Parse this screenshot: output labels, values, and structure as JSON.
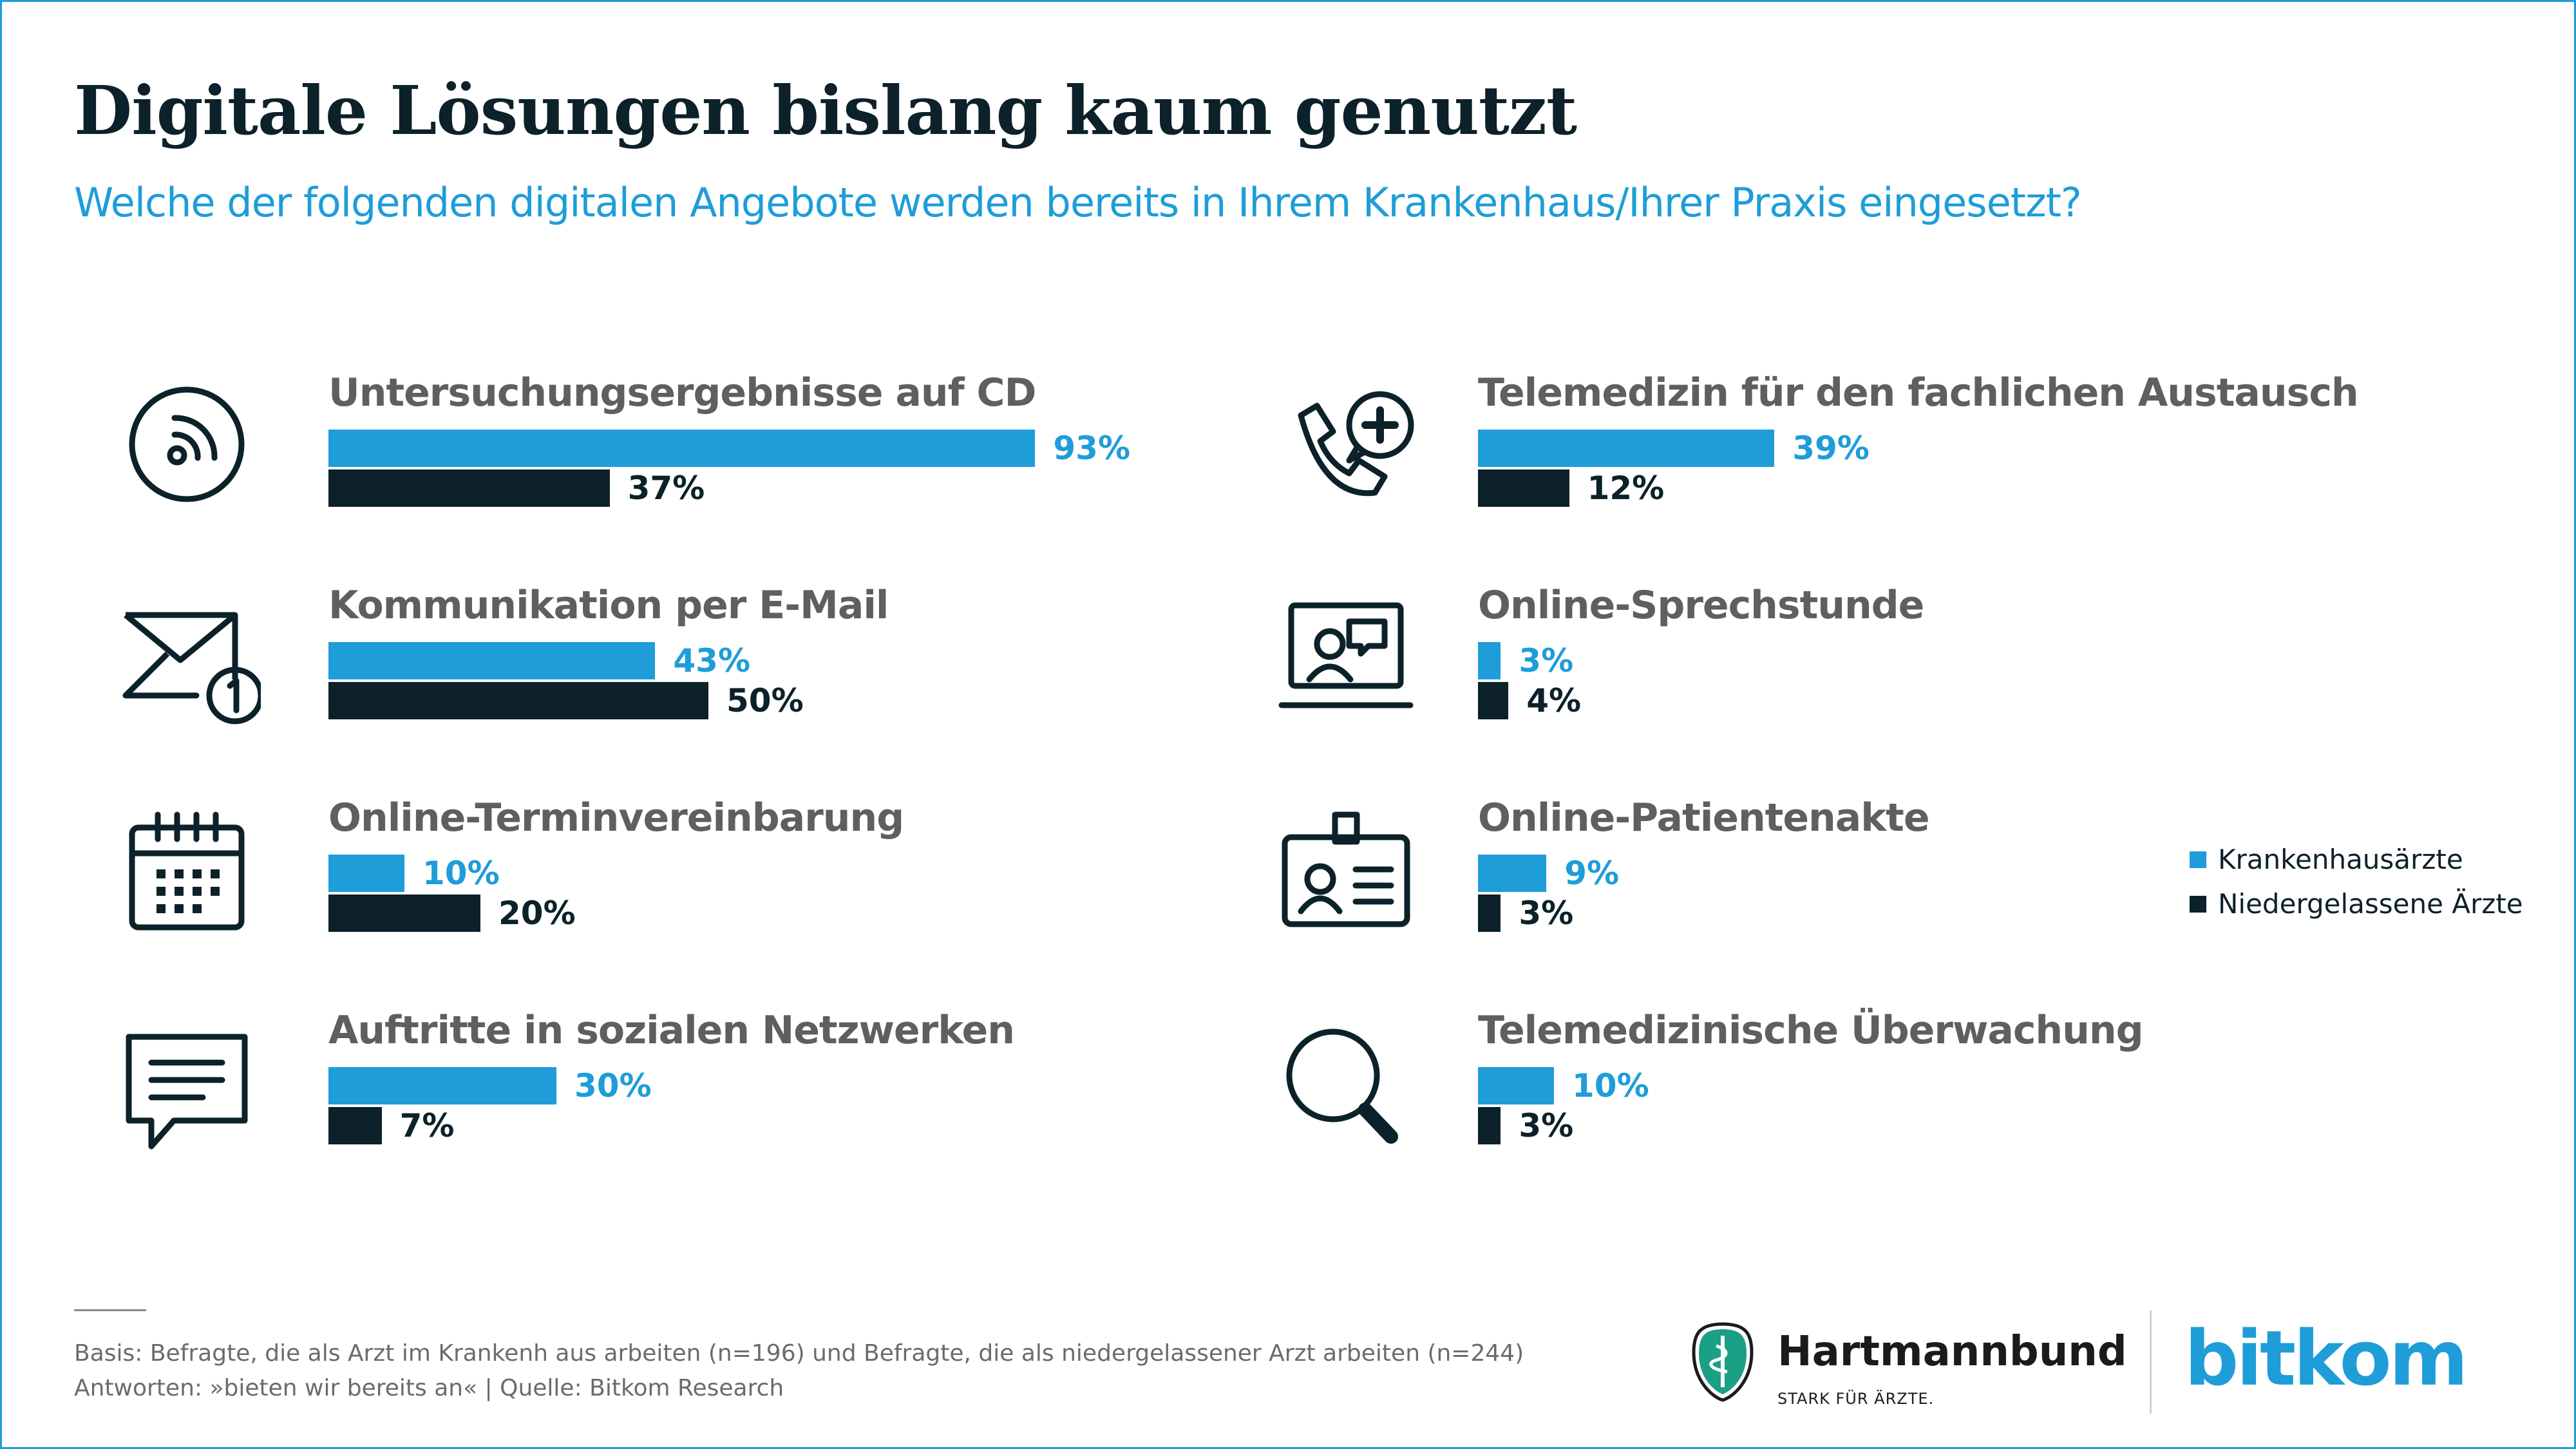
{
  "title": "Digitale Lösungen bislang kaum genutzt",
  "subtitle": "Welche der folgenden digitalen Angebote werden bereits in Ihrem Krankenhaus/Ihrer Praxis eingesetzt?",
  "colors": {
    "krankenhaus": "#1e9dd8",
    "niedergelassen": "#0c2129",
    "label": "#5f5f5f",
    "frame": "#1e9dd8"
  },
  "chart_data": {
    "type": "bar",
    "orientation": "horizontal",
    "series": [
      {
        "name": "Krankenhausärzte",
        "color": "#1e9dd8"
      },
      {
        "name": "Niedergelassene Ärzte",
        "color": "#0c2129"
      }
    ],
    "categories": [
      {
        "label": "Untersuchungsergebnisse auf CD",
        "icon": "cd-disc-icon",
        "values": [
          93,
          37
        ],
        "display": [
          "93%",
          "37%"
        ]
      },
      {
        "label": "Kommunikation per E-Mail",
        "icon": "email-envelope-icon",
        "values": [
          43,
          50
        ],
        "display": [
          "43%",
          "50%"
        ]
      },
      {
        "label": "Online-Terminvereinbarung",
        "icon": "calendar-icon",
        "values": [
          10,
          20
        ],
        "display": [
          "10%",
          "20%"
        ]
      },
      {
        "label": "Auftritte in sozialen Netzwerken",
        "icon": "chat-bubble-icon",
        "values": [
          30,
          7
        ],
        "display": [
          "30%",
          "7%"
        ]
      },
      {
        "label": "Telemedizin für den fachlichen Austausch",
        "icon": "phone-medical-icon",
        "values": [
          39,
          12
        ],
        "display": [
          "39%",
          "12%"
        ]
      },
      {
        "label": "Online-Sprechstunde",
        "icon": "video-consultation-icon",
        "values": [
          3,
          4
        ],
        "display": [
          "3%",
          "4%"
        ]
      },
      {
        "label": "Online-Patientenakte",
        "icon": "id-card-icon",
        "values": [
          9,
          3
        ],
        "display": [
          "9%",
          "3%"
        ]
      },
      {
        "label": "Telemedizinische Überwachung",
        "icon": "magnifier-icon",
        "values": [
          10,
          3
        ],
        "display": [
          "10%",
          "3%"
        ]
      }
    ],
    "legend_position": "right",
    "unit": "%"
  },
  "footer": {
    "line1": "Basis: Befragte, die als Arzt im Krankenh aus arbeiten (n=196) und Befragte, die als niedergelassener Arzt arbeiten (n=244)",
    "line2": "Antworten: »bieten wir bereits an« | Quelle: Bitkom Research"
  },
  "logos": {
    "hartmannbund_name": "Hartmannbund",
    "hartmannbund_tagline": "STARK FÜR ÄRZTE.",
    "bitkom": "bitkom"
  }
}
